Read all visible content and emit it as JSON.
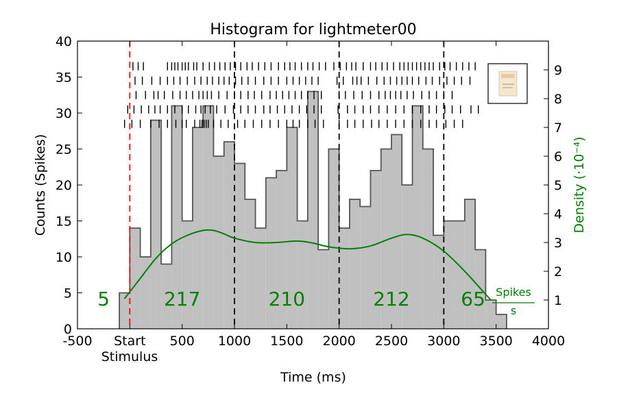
{
  "chart_data": {
    "type": "bar",
    "title": "Histogram for lightmeter00",
    "xlabel": "Time (ms)",
    "ylabel": "Counts (Spikes)",
    "y2label": "Density (·10⁻⁴)",
    "xlim": [
      -500,
      4000
    ],
    "ylim": [
      0,
      40
    ],
    "y2lim": [
      0,
      10
    ],
    "x_ticks": [
      {
        "value": -500,
        "label": "-500"
      },
      {
        "value": 0,
        "label": "Start"
      },
      {
        "value": 500,
        "label": "500"
      },
      {
        "value": 1000,
        "label": "1000"
      },
      {
        "value": 1500,
        "label": "1500"
      },
      {
        "value": 2000,
        "label": "2000"
      },
      {
        "value": 2500,
        "label": "2500"
      },
      {
        "value": 3000,
        "label": "3000"
      },
      {
        "value": 3500,
        "label": "3500"
      },
      {
        "value": 4000,
        "label": "4000"
      }
    ],
    "x_tick_sublabel": "Stimulus",
    "y_ticks": [
      0,
      5,
      10,
      15,
      20,
      25,
      30,
      35,
      40
    ],
    "y2_ticks": [
      1,
      2,
      3,
      4,
      5,
      6,
      7,
      8,
      9
    ],
    "bin_width": 100,
    "bins": [
      {
        "start": -100,
        "count": 5
      },
      {
        "start": 0,
        "count": 14
      },
      {
        "start": 100,
        "count": 10
      },
      {
        "start": 200,
        "count": 29
      },
      {
        "start": 300,
        "count": 9
      },
      {
        "start": 400,
        "count": 31
      },
      {
        "start": 500,
        "count": 15
      },
      {
        "start": 600,
        "count": 28
      },
      {
        "start": 700,
        "count": 31
      },
      {
        "start": 800,
        "count": 24
      },
      {
        "start": 900,
        "count": 26
      },
      {
        "start": 1000,
        "count": 23
      },
      {
        "start": 1100,
        "count": 18
      },
      {
        "start": 1200,
        "count": 14
      },
      {
        "start": 1300,
        "count": 21
      },
      {
        "start": 1400,
        "count": 22
      },
      {
        "start": 1500,
        "count": 28
      },
      {
        "start": 1600,
        "count": 15
      },
      {
        "start": 1700,
        "count": 33
      },
      {
        "start": 1800,
        "count": 11
      },
      {
        "start": 1900,
        "count": 25
      },
      {
        "start": 2000,
        "count": 14
      },
      {
        "start": 2100,
        "count": 18
      },
      {
        "start": 2200,
        "count": 17
      },
      {
        "start": 2300,
        "count": 22
      },
      {
        "start": 2400,
        "count": 25
      },
      {
        "start": 2500,
        "count": 27
      },
      {
        "start": 2600,
        "count": 20
      },
      {
        "start": 2700,
        "count": 31
      },
      {
        "start": 2800,
        "count": 25
      },
      {
        "start": 2900,
        "count": 13
      },
      {
        "start": 3000,
        "count": 15
      },
      {
        "start": 3100,
        "count": 15
      },
      {
        "start": 3200,
        "count": 18
      },
      {
        "start": 3300,
        "count": 11
      },
      {
        "start": 3400,
        "count": 4
      },
      {
        "start": 3500,
        "count": 2
      }
    ],
    "density_curve": {
      "color": "#008000",
      "points": [
        [
          -50,
          1.05
        ],
        [
          100,
          1.75
        ],
        [
          250,
          2.45
        ],
        [
          400,
          2.95
        ],
        [
          550,
          3.25
        ],
        [
          700,
          3.42
        ],
        [
          800,
          3.42
        ],
        [
          900,
          3.3
        ],
        [
          1000,
          3.15
        ],
        [
          1200,
          3.0
        ],
        [
          1400,
          3.0
        ],
        [
          1600,
          3.05
        ],
        [
          1750,
          2.98
        ],
        [
          1900,
          2.85
        ],
        [
          2100,
          2.78
        ],
        [
          2300,
          2.88
        ],
        [
          2500,
          3.15
        ],
        [
          2650,
          3.28
        ],
        [
          2800,
          3.15
        ],
        [
          3000,
          2.7
        ],
        [
          3200,
          2.0
        ],
        [
          3350,
          1.4
        ],
        [
          3450,
          1.0
        ]
      ]
    },
    "raster": {
      "rows": [
        {
          "y": 36.5,
          "x_range": [
            0,
            3400
          ],
          "spikes": [
            30,
            80,
            130,
            360,
            400,
            430,
            460,
            500,
            530,
            560,
            610,
            640,
            700,
            760,
            810,
            860,
            910,
            960,
            1010,
            1060,
            1120,
            1170,
            1230,
            1290,
            1350,
            1420,
            1480,
            1530,
            1580,
            1640,
            1700,
            1750,
            1810,
            1870,
            1950,
            2010,
            2070,
            2120,
            2160,
            2230,
            2300,
            2350,
            2410,
            2460,
            2520,
            2580,
            2620,
            2660,
            2700,
            2740,
            2780,
            2820,
            2860,
            2900,
            2960,
            3010,
            3060,
            3120,
            3180,
            3240,
            3300
          ]
        },
        {
          "y": 34.5,
          "x_range": [
            0,
            3400
          ],
          "spikes": [
            50,
            120,
            210,
            290,
            360,
            420,
            480,
            550,
            620,
            680,
            740,
            790,
            850,
            900,
            950,
            1010,
            1070,
            1130,
            1200,
            1280,
            1350,
            1420,
            1500,
            1560,
            1620,
            1680,
            1740,
            1800,
            1980,
            2040,
            2130,
            2170,
            2210,
            2280,
            2360,
            2430,
            2490,
            2550,
            2600,
            2650,
            2700,
            2760,
            2830,
            2890,
            2960,
            3030,
            3100,
            3170,
            3250
          ]
        },
        {
          "y": 32.5,
          "x_range": [
            0,
            3400
          ],
          "spikes": [
            60,
            150,
            230,
            270,
            330,
            410,
            480,
            540,
            600,
            660,
            700,
            740,
            780,
            850,
            930,
            1000,
            1060,
            1130,
            1190,
            1260,
            1340,
            1400,
            1460,
            1520,
            1580,
            1640,
            1700,
            1760,
            1830,
            2000,
            2060,
            2140,
            2220,
            2300,
            2380,
            2440,
            2490,
            2540,
            2590,
            2650,
            2710,
            2790,
            2860,
            2930,
            3000,
            3080
          ]
        },
        {
          "y": 30.5,
          "x_range": [
            0,
            3400
          ],
          "spikes": [
            -20,
            40,
            110,
            180,
            240,
            290,
            360,
            430,
            500,
            560,
            630,
            680,
            720,
            770,
            830,
            910,
            990,
            1060,
            1130,
            1200,
            1280,
            1340,
            1410,
            1480,
            1550,
            1620,
            1690,
            1760,
            1830,
            1990,
            2080,
            2150,
            2230,
            2300,
            2380,
            2460,
            2540,
            2620,
            2700,
            2780,
            2860,
            2930,
            3010,
            3080,
            3160,
            3260,
            3330
          ]
        },
        {
          "y": 28.5,
          "x_range": [
            0,
            3400
          ],
          "spikes": [
            -50,
            20,
            100,
            200,
            280,
            360,
            440,
            500,
            540,
            620,
            670,
            690,
            710,
            730,
            750,
            800,
            870,
            940,
            1030,
            1100,
            1180,
            1260,
            1340,
            1420,
            1500,
            1560,
            1620,
            1700,
            1770,
            1850,
            2000,
            2080,
            2150,
            2230,
            2310,
            2380,
            2460,
            2540,
            2620,
            2700,
            2780,
            2860,
            2930,
            3020,
            3100,
            3180
          ]
        }
      ]
    },
    "stimulus_line": {
      "x": 0,
      "color": "#ff0000",
      "style": "dashed"
    },
    "boundaries": [
      1000,
      2000,
      3000
    ],
    "region_counts": [
      {
        "x": -250,
        "label": "5"
      },
      {
        "x": 500,
        "label": "217"
      },
      {
        "x": 1500,
        "label": "210"
      },
      {
        "x": 2500,
        "label": "212"
      },
      {
        "x": 3280,
        "label": "65"
      }
    ],
    "unit_label": {
      "numerator": "Spikes",
      "denominator": "s"
    },
    "colors": {
      "bar_fill": "#c0c0c0",
      "bar_edge": "#555555",
      "density": "#008000"
    }
  }
}
